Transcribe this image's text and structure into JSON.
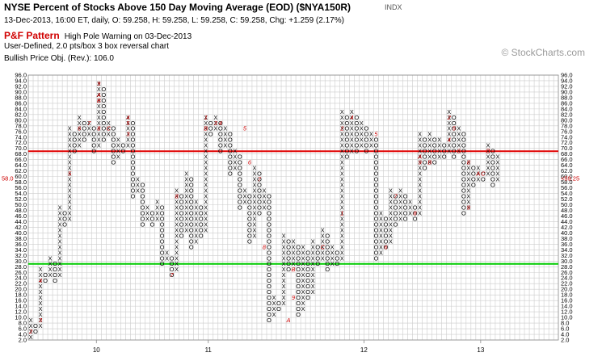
{
  "header": {
    "title": "NYSE Percent of Stocks Above 150 Day Moving Average (EOD) ($NYA150R)",
    "symbol_type": "INDX",
    "info": "13-Dec-2013, 16:00 ET, daily, O: 59.258, H: 59.258, L: 59.258, C: 59.258, Chg: +1.259 (2.17%)",
    "pattern_label": "P&F Pattern",
    "pattern_text": "High Pole Warning on 03-Dec-2013",
    "details": "User-Defined, 2.0 pts/box 3 box reversal chart",
    "price_objective": "Bullish Price Obj. (Rev.): 106.0"
  },
  "watermark": "© StockCharts.com",
  "colors": {
    "x_mark": "#000000",
    "o_mark": "#000000",
    "month_marker": "#cc0000",
    "resistance_line": "#e00000",
    "support_line": "#00cc00",
    "grid": "#cccccc",
    "price_label": "#cc0000",
    "pattern_label": "#d00000"
  },
  "chart_data": {
    "type": "point-and-figure",
    "title": "NYSE Percent of Stocks Above 150 Day Moving Average (EOD) ($NYA150R)",
    "box_size": 2.0,
    "reversal": 3,
    "ylim": [
      2,
      96
    ],
    "y_ticks": [
      "2.0",
      "4.0",
      "6.0",
      "8.0",
      "10.0",
      "12.0",
      "14.0",
      "16.0",
      "18.0",
      "20.0",
      "22.0",
      "24.0",
      "26.0",
      "28.0",
      "30.0",
      "32.0",
      "34.0",
      "36.0",
      "38.0",
      "40.0",
      "42.0",
      "44.0",
      "46.0",
      "48.0",
      "50.0",
      "52.0",
      "54.0",
      "56.0",
      "58.0",
      "60.0",
      "62.0",
      "64.0",
      "66.0",
      "68.0",
      "70.0",
      "72.0",
      "74.0",
      "76.0",
      "78.0",
      "80.0",
      "82.0",
      "84.0",
      "86.0",
      "88.0",
      "90.0",
      "92.0",
      "94.0",
      "96.0"
    ],
    "x_labels": [
      {
        "label": "10",
        "column": 14
      },
      {
        "label": "11",
        "column": 37
      },
      {
        "label": "12",
        "column": 69
      },
      {
        "label": "13",
        "column": 93
      }
    ],
    "columns": [
      {
        "type": "X",
        "low": 4,
        "high": 10
      },
      {
        "type": "O",
        "low": 6,
        "high": 8
      },
      {
        "type": "X",
        "low": 8,
        "high": 28
      },
      {
        "type": "O",
        "low": 24,
        "high": 26
      },
      {
        "type": "X",
        "low": 26,
        "high": 32
      },
      {
        "type": "O",
        "low": 24,
        "high": 30
      },
      {
        "type": "X",
        "low": 26,
        "high": 50
      },
      {
        "type": "O",
        "low": 44,
        "high": 48
      },
      {
        "type": "X",
        "low": 46,
        "high": 78
      },
      {
        "type": "O",
        "low": 70,
        "high": 76
      },
      {
        "type": "X",
        "low": 72,
        "high": 82
      },
      {
        "type": "O",
        "low": 74,
        "high": 80
      },
      {
        "type": "X",
        "low": 76,
        "high": 80
      },
      {
        "type": "O",
        "low": 70,
        "high": 78
      },
      {
        "type": "X",
        "low": 72,
        "high": 94
      },
      {
        "type": "O",
        "low": 74,
        "high": 92
      },
      {
        "type": "X",
        "low": 76,
        "high": 80
      },
      {
        "type": "O",
        "low": 66,
        "high": 78
      },
      {
        "type": "X",
        "low": 68,
        "high": 74
      },
      {
        "type": "O",
        "low": 70,
        "high": 72
      },
      {
        "type": "X",
        "low": 72,
        "high": 82
      },
      {
        "type": "O",
        "low": 54,
        "high": 80
      },
      {
        "type": "X",
        "low": 56,
        "high": 60
      },
      {
        "type": "O",
        "low": 44,
        "high": 58
      },
      {
        "type": "X",
        "low": 46,
        "high": 50
      },
      {
        "type": "O",
        "low": 44,
        "high": 48
      },
      {
        "type": "X",
        "low": 46,
        "high": 52
      },
      {
        "type": "O",
        "low": 30,
        "high": 50
      },
      {
        "type": "X",
        "low": 32,
        "high": 34
      },
      {
        "type": "O",
        "low": 26,
        "high": 32
      },
      {
        "type": "X",
        "low": 28,
        "high": 56
      },
      {
        "type": "O",
        "low": 40,
        "high": 54
      },
      {
        "type": "X",
        "low": 42,
        "high": 62
      },
      {
        "type": "O",
        "low": 36,
        "high": 60
      },
      {
        "type": "X",
        "low": 38,
        "high": 52
      },
      {
        "type": "O",
        "low": 40,
        "high": 50
      },
      {
        "type": "X",
        "low": 42,
        "high": 82
      },
      {
        "type": "O",
        "low": 76,
        "high": 80
      },
      {
        "type": "X",
        "low": 78,
        "high": 82
      },
      {
        "type": "O",
        "low": 70,
        "high": 80
      },
      {
        "type": "X",
        "low": 72,
        "high": 78
      },
      {
        "type": "O",
        "low": 62,
        "high": 76
      },
      {
        "type": "X",
        "low": 64,
        "high": 70
      },
      {
        "type": "O",
        "low": 50,
        "high": 68
      },
      {
        "type": "X",
        "low": 52,
        "high": 56
      },
      {
        "type": "O",
        "low": 38,
        "high": 54
      },
      {
        "type": "X",
        "low": 40,
        "high": 64
      },
      {
        "type": "O",
        "low": 48,
        "high": 62
      },
      {
        "type": "X",
        "low": 50,
        "high": 56
      },
      {
        "type": "O",
        "low": 10,
        "high": 54
      },
      {
        "type": "X",
        "low": 12,
        "high": 18
      },
      {
        "type": "O",
        "low": 14,
        "high": 16
      },
      {
        "type": "X",
        "low": 16,
        "high": 40
      },
      {
        "type": "O",
        "low": 28,
        "high": 38
      },
      {
        "type": "X",
        "low": 30,
        "high": 38
      },
      {
        "type": "O",
        "low": 12,
        "high": 36
      },
      {
        "type": "X",
        "low": 14,
        "high": 36
      },
      {
        "type": "O",
        "low": 18,
        "high": 34
      },
      {
        "type": "X",
        "low": 20,
        "high": 38
      },
      {
        "type": "O",
        "low": 30,
        "high": 36
      },
      {
        "type": "X",
        "low": 32,
        "high": 42
      },
      {
        "type": "O",
        "low": 28,
        "high": 40
      },
      {
        "type": "X",
        "low": 30,
        "high": 36
      },
      {
        "type": "O",
        "low": 30,
        "high": 34
      },
      {
        "type": "X",
        "low": 32,
        "high": 84
      },
      {
        "type": "O",
        "low": 68,
        "high": 82
      },
      {
        "type": "X",
        "low": 70,
        "high": 84
      },
      {
        "type": "O",
        "low": 70,
        "high": 82
      },
      {
        "type": "X",
        "low": 72,
        "high": 80
      },
      {
        "type": "O",
        "low": 70,
        "high": 78
      },
      {
        "type": "X",
        "low": 72,
        "high": 76
      },
      {
        "type": "O",
        "low": 32,
        "high": 74
      },
      {
        "type": "X",
        "low": 34,
        "high": 48
      },
      {
        "type": "O",
        "low": 36,
        "high": 46
      },
      {
        "type": "X",
        "low": 38,
        "high": 56
      },
      {
        "type": "O",
        "low": 44,
        "high": 54
      },
      {
        "type": "X",
        "low": 46,
        "high": 56
      },
      {
        "type": "O",
        "low": 46,
        "high": 54
      },
      {
        "type": "X",
        "low": 48,
        "high": 52
      },
      {
        "type": "O",
        "low": 46,
        "high": 50
      },
      {
        "type": "X",
        "low": 48,
        "high": 76
      },
      {
        "type": "O",
        "low": 64,
        "high": 74
      },
      {
        "type": "X",
        "low": 66,
        "high": 76
      },
      {
        "type": "O",
        "low": 66,
        "high": 74
      },
      {
        "type": "X",
        "low": 68,
        "high": 74
      },
      {
        "type": "O",
        "low": 68,
        "high": 72
      },
      {
        "type": "X",
        "low": 70,
        "high": 84
      },
      {
        "type": "O",
        "low": 68,
        "high": 82
      },
      {
        "type": "X",
        "low": 70,
        "high": 78
      },
      {
        "type": "O",
        "low": 48,
        "high": 76
      },
      {
        "type": "X",
        "low": 50,
        "high": 66
      },
      {
        "type": "O",
        "low": 58,
        "high": 64
      },
      {
        "type": "X",
        "low": 60,
        "high": 64
      },
      {
        "type": "O",
        "low": 60,
        "high": 62
      },
      {
        "type": "X",
        "low": 62,
        "high": 72
      },
      {
        "type": "O",
        "low": 58,
        "high": 70
      },
      {
        "type": "X",
        "low": 60,
        "high": 68
      }
    ],
    "month_markers": [
      {
        "column": 0,
        "value": 6,
        "label": "2"
      },
      {
        "column": 2,
        "value": 10,
        "label": "3"
      },
      {
        "column": 2,
        "value": 24,
        "label": "4"
      },
      {
        "column": 8,
        "value": 62,
        "label": "5"
      },
      {
        "column": 10,
        "value": 78,
        "label": "6"
      },
      {
        "column": 12,
        "value": 80,
        "label": "7"
      },
      {
        "column": 14,
        "value": 78,
        "label": "8"
      },
      {
        "column": 14,
        "value": 94,
        "label": "9"
      },
      {
        "column": 14,
        "value": 90,
        "label": "A"
      },
      {
        "column": 14,
        "value": 88,
        "label": "B"
      },
      {
        "column": 16,
        "value": 78,
        "label": "C"
      },
      {
        "column": 20,
        "value": 82,
        "label": "4"
      },
      {
        "column": 20,
        "value": 80,
        "label": "5"
      },
      {
        "column": 20,
        "value": 76,
        "label": "3"
      },
      {
        "column": 30,
        "value": 54,
        "label": "8"
      },
      {
        "column": 29,
        "value": 26,
        "label": "7"
      },
      {
        "column": 36,
        "value": 82,
        "label": "1"
      },
      {
        "column": 36,
        "value": 78,
        "label": "B"
      },
      {
        "column": 38,
        "value": 80,
        "label": "3"
      },
      {
        "column": 39,
        "value": 80,
        "label": "4"
      },
      {
        "column": 44,
        "value": 78,
        "label": "5"
      },
      {
        "column": 45,
        "value": 66,
        "label": "6"
      },
      {
        "column": 47,
        "value": 60,
        "label": "7"
      },
      {
        "column": 48,
        "value": 36,
        "label": "8"
      },
      {
        "column": 54,
        "value": 18,
        "label": "9"
      },
      {
        "column": 54,
        "value": 28,
        "label": "B"
      },
      {
        "column": 53,
        "value": 10,
        "label": "A"
      },
      {
        "column": 60,
        "value": 36,
        "label": "C"
      },
      {
        "column": 64,
        "value": 48,
        "label": "1"
      },
      {
        "column": 64,
        "value": 78,
        "label": "2"
      },
      {
        "column": 66,
        "value": 82,
        "label": "4"
      },
      {
        "column": 71,
        "value": 76,
        "label": "5"
      },
      {
        "column": 73,
        "value": 36,
        "label": "6"
      },
      {
        "column": 75,
        "value": 54,
        "label": "7"
      },
      {
        "column": 79,
        "value": 48,
        "label": "8"
      },
      {
        "column": 80,
        "value": 66,
        "label": "9"
      },
      {
        "column": 80,
        "value": 68,
        "label": "A"
      },
      {
        "column": 82,
        "value": 66,
        "label": "B"
      },
      {
        "column": 86,
        "value": 82,
        "label": "2"
      },
      {
        "column": 87,
        "value": 78,
        "label": "5"
      },
      {
        "column": 86,
        "value": 74,
        "label": "4"
      },
      {
        "column": 88,
        "value": 70,
        "label": "6"
      },
      {
        "column": 90,
        "value": 66,
        "label": "8"
      },
      {
        "column": 90,
        "value": 50,
        "label": "9"
      },
      {
        "column": 92,
        "value": 62,
        "label": "A"
      },
      {
        "column": 93,
        "value": 62,
        "label": "C"
      },
      {
        "column": 94,
        "value": 70,
        "label": "B"
      }
    ],
    "resistance_line": {
      "value": 69,
      "color": "#e00000"
    },
    "support_line": {
      "value": 29,
      "color": "#00cc00"
    },
    "last_price_label": {
      "value": 59.25,
      "left_text": "58.0",
      "right_text": "<59.25"
    },
    "grid": true
  }
}
